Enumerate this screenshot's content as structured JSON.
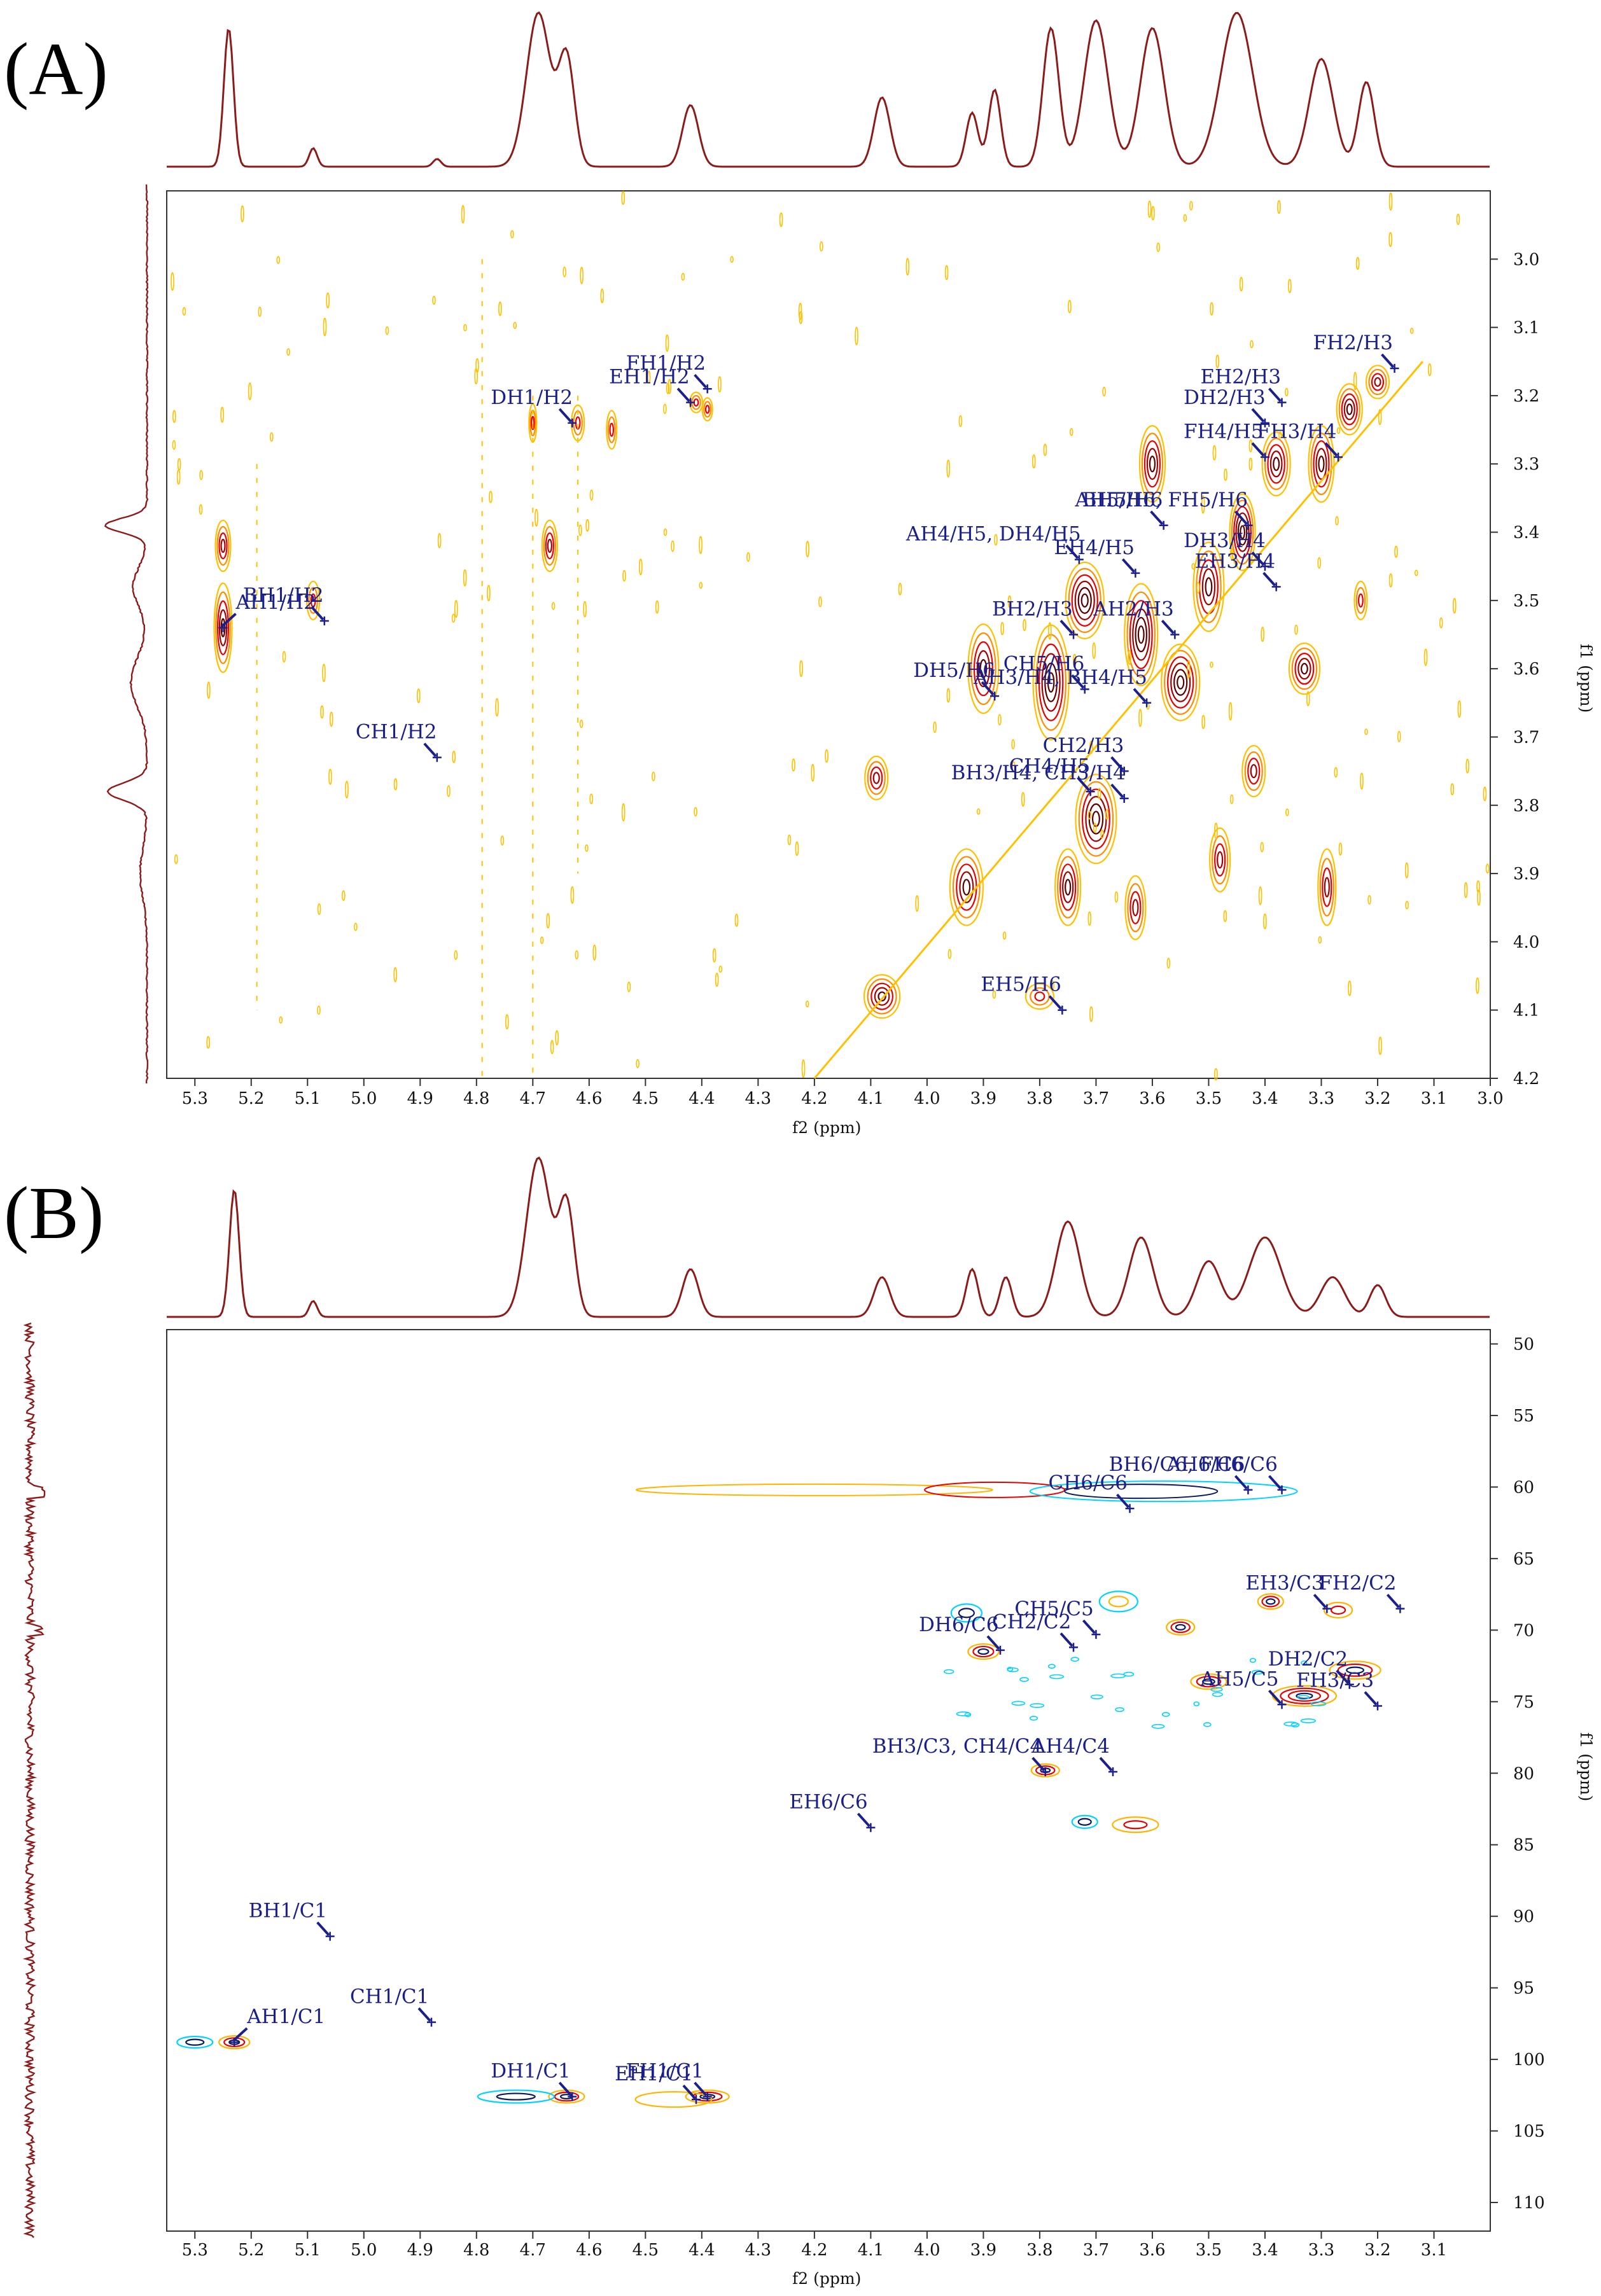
{
  "chart_data": [
    {
      "type": "contour",
      "panel_label": "(A)",
      "xlabel": "f2 (ppm)",
      "ylabel": "f1 (ppm)",
      "xlim": [
        5.35,
        3.0
      ],
      "ylim": [
        2.9,
        4.2
      ],
      "xticks": [
        "5.3",
        "5.2",
        "5.1",
        "5.0",
        "4.9",
        "4.8",
        "4.7",
        "4.6",
        "4.5",
        "4.4",
        "4.3",
        "4.2",
        "4.1",
        "4.0",
        "3.9",
        "3.8",
        "3.7",
        "3.6",
        "3.5",
        "3.4",
        "3.3",
        "3.2",
        "3.1",
        "3.0"
      ],
      "yticks": [
        "3.0",
        "3.1",
        "3.2",
        "3.3",
        "3.4",
        "3.5",
        "3.6",
        "3.7",
        "3.8",
        "3.9",
        "4.0",
        "4.1",
        "4.2"
      ],
      "contour_colors": [
        "#ffc000",
        "#ff8c00",
        "#e60000",
        "#a50000",
        "#5a0000"
      ],
      "spectrum_color": "#8b1a1a",
      "annotations": [
        {
          "label": "AH1/H2",
          "x": 5.25,
          "y": 3.54
        },
        {
          "label": "BH1/H2",
          "x": 5.07,
          "y": 3.53
        },
        {
          "label": "CH1/H2",
          "x": 4.87,
          "y": 3.73
        },
        {
          "label": "DH1/H2",
          "x": 4.63,
          "y": 3.24
        },
        {
          "label": "EH1/H2",
          "x": 4.42,
          "y": 3.21
        },
        {
          "label": "FH1/H2",
          "x": 4.39,
          "y": 3.19
        },
        {
          "label": "FH2/H3",
          "x": 3.17,
          "y": 3.16
        },
        {
          "label": "EH2/H3",
          "x": 3.37,
          "y": 3.21
        },
        {
          "label": "DH2/H3",
          "x": 3.4,
          "y": 3.24
        },
        {
          "label": "FH4/H5",
          "x": 3.4,
          "y": 3.29
        },
        {
          "label": "FH3/H4",
          "x": 3.27,
          "y": 3.29
        },
        {
          "label": "AH5/H6, FH5/H6",
          "x": 3.43,
          "y": 3.39
        },
        {
          "label": "BH5/H6",
          "x": 3.58,
          "y": 3.39
        },
        {
          "label": "AH4/H5, DH4/H5",
          "x": 3.73,
          "y": 3.44
        },
        {
          "label": "EH4/H5",
          "x": 3.63,
          "y": 3.46
        },
        {
          "label": "DH3/H4",
          "x": 3.4,
          "y": 3.45
        },
        {
          "label": "EH3/H4",
          "x": 3.38,
          "y": 3.48
        },
        {
          "label": "BH2/H3",
          "x": 3.74,
          "y": 3.55
        },
        {
          "label": "AH2/H3",
          "x": 3.56,
          "y": 3.55
        },
        {
          "label": "CH5/H6",
          "x": 3.72,
          "y": 3.63
        },
        {
          "label": "DH5/H6",
          "x": 3.88,
          "y": 3.64
        },
        {
          "label": "AH3/H4, BH4/H5",
          "x": 3.61,
          "y": 3.65
        },
        {
          "label": "CH2/H3",
          "x": 3.65,
          "y": 3.75
        },
        {
          "label": "CH4/H5",
          "x": 3.71,
          "y": 3.78
        },
        {
          "label": "BH3/H4, CH3/H4",
          "x": 3.65,
          "y": 3.79
        },
        {
          "label": "EH5/H6",
          "x": 3.76,
          "y": 4.1
        }
      ]
    },
    {
      "type": "contour",
      "panel_label": "(B)",
      "xlabel": "f2 (ppm)",
      "ylabel": "f1 (ppm)",
      "xlim": [
        5.35,
        3.0
      ],
      "ylim": [
        49,
        112
      ],
      "xticks": [
        "5.3",
        "5.2",
        "5.1",
        "5.0",
        "4.9",
        "4.8",
        "4.7",
        "4.6",
        "4.5",
        "4.4",
        "4.3",
        "4.2",
        "4.1",
        "4.0",
        "3.9",
        "3.8",
        "3.7",
        "3.6",
        "3.5",
        "3.4",
        "3.3",
        "3.2",
        "3.1"
      ],
      "yticks": [
        "50",
        "55",
        "60",
        "65",
        "70",
        "75",
        "80",
        "85",
        "90",
        "95",
        "100",
        "105",
        "110"
      ],
      "contour_colors": [
        "#00d2ff",
        "#ffb400",
        "#e60000",
        "#0a1a5a"
      ],
      "spectrum_color": "#8b1a1a",
      "annotations": [
        {
          "label": "AH6/C6",
          "x": 3.43,
          "y": 60.2
        },
        {
          "label": "BH6/C6, FH6/C6",
          "x": 3.37,
          "y": 60.2
        },
        {
          "label": "CH6/C6",
          "x": 3.64,
          "y": 61.5
        },
        {
          "label": "EH3/C3",
          "x": 3.29,
          "y": 68.5
        },
        {
          "label": "FH2/C2",
          "x": 3.16,
          "y": 68.5
        },
        {
          "label": "DH6/C6",
          "x": 3.87,
          "y": 71.4
        },
        {
          "label": "CH2/C2",
          "x": 3.74,
          "y": 71.2
        },
        {
          "label": "CH5/C5",
          "x": 3.7,
          "y": 70.3
        },
        {
          "label": "DH2/C2",
          "x": 3.25,
          "y": 73.8
        },
        {
          "label": "AH5/C5",
          "x": 3.37,
          "y": 75.2
        },
        {
          "label": "FH3/C3",
          "x": 3.2,
          "y": 75.3
        },
        {
          "label": "BH3/C3, CH4/C4",
          "x": 3.79,
          "y": 79.9
        },
        {
          "label": "AH4/C4",
          "x": 3.67,
          "y": 79.9
        },
        {
          "label": "EH6/C6",
          "x": 4.1,
          "y": 83.8
        },
        {
          "label": "BH1/C1",
          "x": 5.06,
          "y": 91.4
        },
        {
          "label": "CH1/C1",
          "x": 4.88,
          "y": 97.4
        },
        {
          "label": "AH1/C1",
          "x": 5.23,
          "y": 98.8
        },
        {
          "label": "DH1/C1",
          "x": 4.63,
          "y": 102.6
        },
        {
          "label": "FH1/C1",
          "x": 4.39,
          "y": 102.6
        },
        {
          "label": "EH1/C1",
          "x": 4.41,
          "y": 102.8
        }
      ]
    }
  ]
}
